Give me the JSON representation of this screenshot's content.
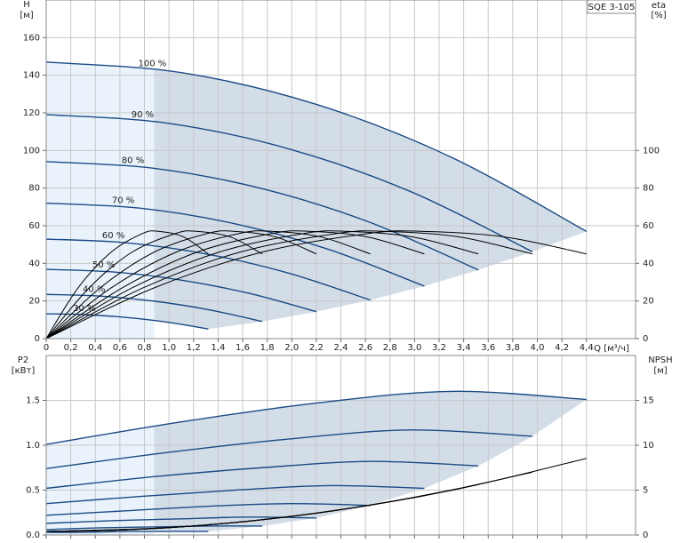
{
  "chart_data": [
    {
      "type": "line",
      "title": "SQE 3-105",
      "y_label": "H",
      "y_unit": "[м]",
      "y2_label": "eta",
      "y2_unit": "[%]",
      "x_label": "Q [м³/ч]",
      "xlim": [
        0,
        4.8
      ],
      "xticks": [
        0,
        {
          "value": 0.2,
          "label": "0,2"
        },
        {
          "value": 0.4,
          "label": "0,4"
        },
        {
          "value": 0.6,
          "label": "0,6"
        },
        {
          "value": 0.8,
          "label": "0,8"
        },
        {
          "value": 1.0,
          "label": "1,0"
        },
        {
          "value": 1.2,
          "label": "1,2"
        },
        {
          "value": 1.4,
          "label": "1,4"
        },
        {
          "value": 1.6,
          "label": "1,6"
        },
        {
          "value": 1.8,
          "label": "1,8"
        },
        {
          "value": 2.0,
          "label": "2,0"
        },
        {
          "value": 2.2,
          "label": "2,2"
        },
        {
          "value": 2.4,
          "label": "2,4"
        },
        {
          "value": 2.6,
          "label": "2,6"
        },
        {
          "value": 2.8,
          "label": "2,8"
        },
        {
          "value": 3.0,
          "label": "3,0"
        },
        {
          "value": 3.2,
          "label": "3,2"
        },
        {
          "value": 3.4,
          "label": "3,4"
        },
        {
          "value": 3.6,
          "label": "3,6"
        },
        {
          "value": 3.8,
          "label": "3,8"
        },
        {
          "value": 4.0,
          "label": "4,0"
        },
        {
          "value": 4.2,
          "label": "4,2"
        },
        {
          "value": 4.4,
          "label": "4,4"
        }
      ],
      "ylim": [
        0,
        180
      ],
      "yticks": [
        0,
        20,
        40,
        60,
        80,
        100,
        120,
        140,
        160
      ],
      "y2lim": [
        0,
        180
      ],
      "y2ticks": [
        0,
        20,
        40,
        60,
        80,
        100
      ],
      "grid": true,
      "shade_color": "#d3dde8",
      "light_shade_color": "#eaf3fb",
      "recommended_q_min": 0.88,
      "series": [
        {
          "name": "100 %",
          "color": "#1a4a85",
          "x": [
            0,
            1.1,
            2.2,
            3.3,
            4.4
          ],
          "values": [
            147,
            141.4,
            124.5,
            96.4,
            57
          ]
        },
        {
          "name": "90 %",
          "color": "#1a4a85",
          "x": [
            0,
            0.99,
            1.98,
            2.97,
            3.96
          ],
          "values": [
            119.1,
            114.5,
            100.8,
            78.1,
            46.2
          ]
        },
        {
          "name": "80 %",
          "color": "#1a4a85",
          "x": [
            0,
            0.88,
            1.76,
            2.64,
            3.52
          ],
          "values": [
            94.1,
            90.5,
            79.7,
            61.7,
            36.5
          ]
        },
        {
          "name": "70 %",
          "color": "#1a4a85",
          "x": [
            0,
            0.77,
            1.54,
            2.31,
            3.08
          ],
          "values": [
            72,
            69.3,
            61,
            47.2,
            27.9
          ]
        },
        {
          "name": "60 %",
          "color": "#1a4a85",
          "x": [
            0,
            0.66,
            1.32,
            1.98,
            2.64
          ],
          "values": [
            52.9,
            50.9,
            44.8,
            34.7,
            20.5
          ]
        },
        {
          "name": "50 %",
          "color": "#1a4a85",
          "x": [
            0,
            0.55,
            1.1,
            1.65,
            2.2
          ],
          "values": [
            36.8,
            35.4,
            31.1,
            24.1,
            14.3
          ]
        },
        {
          "name": "40 %",
          "color": "#1a4a85",
          "x": [
            0,
            0.44,
            0.88,
            1.32,
            1.76
          ],
          "values": [
            23.5,
            22.6,
            19.9,
            15.4,
            9.1
          ]
        },
        {
          "name": "30 %",
          "color": "#1a4a85",
          "x": [
            0,
            0.33,
            0.66,
            0.99,
            1.32
          ],
          "values": [
            13.2,
            12.7,
            11.2,
            8.7,
            5.1
          ]
        },
        {
          "color": "#000000",
          "axis": "y2",
          "x": [
            0,
            0.88,
            1.76,
            2.64,
            3.08,
            3.74,
            4.4
          ],
          "values": [
            0,
            27,
            46,
            56,
            57,
            54,
            45
          ]
        },
        {
          "color": "#000000",
          "axis": "y2",
          "x": [
            0,
            0.79,
            1.58,
            2.38,
            2.77,
            3.37,
            3.96
          ],
          "values": [
            0,
            27,
            46,
            56,
            57,
            54,
            45
          ]
        },
        {
          "color": "#000000",
          "axis": "y2",
          "x": [
            0,
            0.7,
            1.41,
            2.11,
            2.46,
            2.99,
            3.52
          ],
          "values": [
            0,
            27,
            46,
            56,
            57,
            54,
            45
          ]
        },
        {
          "color": "#000000",
          "axis": "y2",
          "x": [
            0,
            0.62,
            1.23,
            1.85,
            2.16,
            2.62,
            3.08
          ],
          "values": [
            0,
            27,
            46,
            56,
            57,
            54,
            45
          ]
        },
        {
          "color": "#000000",
          "axis": "y2",
          "x": [
            0,
            0.53,
            1.06,
            1.58,
            1.85,
            2.24,
            2.64
          ],
          "values": [
            0,
            27,
            46,
            56,
            57,
            54,
            45
          ]
        },
        {
          "color": "#000000",
          "axis": "y2",
          "x": [
            0,
            0.44,
            0.88,
            1.32,
            1.54,
            1.87,
            2.2
          ],
          "values": [
            0,
            27,
            46,
            56,
            57,
            54,
            45
          ]
        },
        {
          "color": "#000000",
          "axis": "y2",
          "x": [
            0,
            0.35,
            0.7,
            1.06,
            1.23,
            1.5,
            1.76
          ],
          "values": [
            0,
            27,
            46,
            56,
            57,
            54,
            45
          ]
        },
        {
          "color": "#000000",
          "axis": "y2",
          "x": [
            0,
            0.26,
            0.53,
            0.79,
            0.92,
            1.12,
            1.32
          ],
          "values": [
            0,
            27,
            46,
            56,
            57,
            54,
            45
          ]
        }
      ]
    },
    {
      "type": "line",
      "y_label": "P2",
      "y_unit": "[кВт]",
      "y2_label": "NPSH",
      "y2_unit": "[м]",
      "xlim": [
        0,
        4.8
      ],
      "xticks": [
        0,
        0.2,
        0.4,
        0.6,
        0.8,
        1.0,
        1.2,
        1.4,
        1.6,
        1.8,
        2.0,
        2.2,
        2.4,
        2.6,
        2.8,
        3.0,
        3.2,
        3.4,
        3.6,
        3.8,
        4.0,
        4.2,
        4.4
      ],
      "ylim": [
        0,
        2
      ],
      "yticks": [
        {
          "value": 0,
          "label": "0.0"
        },
        {
          "value": 0.5,
          "label": "0.5"
        },
        {
          "value": 1,
          "label": "1.0"
        },
        {
          "value": 1.5,
          "label": "1.5"
        }
      ],
      "y2lim": [
        0,
        20
      ],
      "y2ticks": [
        0,
        5,
        10,
        15
      ],
      "grid": true,
      "shade_color": "#d3dde8",
      "light_shade_color": "#eaf3fb",
      "recommended_q_min": 0.88,
      "series": [
        {
          "color": "#1a4a85",
          "x": [
            0,
            1.1,
            2.2,
            3.3,
            4.4
          ],
          "values": [
            1.01,
            1.26,
            1.47,
            1.6,
            1.51
          ]
        },
        {
          "color": "#1a4a85",
          "x": [
            0,
            0.99,
            1.98,
            2.97,
            3.96
          ],
          "values": [
            0.74,
            0.92,
            1.07,
            1.17,
            1.1
          ]
        },
        {
          "color": "#1a4a85",
          "x": [
            0,
            0.88,
            1.76,
            2.64,
            3.52
          ],
          "values": [
            0.52,
            0.65,
            0.75,
            0.82,
            0.77
          ]
        },
        {
          "color": "#1a4a85",
          "x": [
            0,
            0.77,
            1.54,
            2.31,
            3.08
          ],
          "values": [
            0.35,
            0.43,
            0.5,
            0.55,
            0.52
          ]
        },
        {
          "color": "#1a4a85",
          "x": [
            0,
            0.66,
            1.32,
            1.98,
            2.64
          ],
          "values": [
            0.22,
            0.27,
            0.32,
            0.35,
            0.33
          ]
        },
        {
          "color": "#1a4a85",
          "x": [
            0,
            0.55,
            1.1,
            1.65,
            2.2
          ],
          "values": [
            0.13,
            0.16,
            0.18,
            0.2,
            0.19
          ]
        },
        {
          "color": "#1a4a85",
          "x": [
            0,
            0.44,
            0.88,
            1.32,
            1.76
          ],
          "values": [
            0.06,
            0.08,
            0.09,
            0.1,
            0.1
          ]
        },
        {
          "color": "#1a4a85",
          "x": [
            0,
            0.33,
            0.66,
            0.99,
            1.32
          ],
          "values": [
            0.03,
            0.03,
            0.04,
            0.04,
            0.04
          ]
        },
        {
          "color": "#000000",
          "axis": "y2",
          "x": [
            0,
            1.1,
            2.2,
            3.3,
            4.4
          ],
          "values": [
            0.4,
            0.91,
            2.43,
            4.97,
            8.53
          ]
        },
        {
          "color": "#000000",
          "axis": "y2",
          "x": [
            0,
            0.99,
            1.98,
            2.97,
            3.96
          ],
          "values": [
            0.4,
            0.81,
            2.05,
            4.1,
            6.99
          ]
        },
        {
          "color": "#000000",
          "axis": "y2",
          "x": [
            0,
            0.88,
            1.76,
            2.64,
            3.52
          ],
          "values": [
            0.4,
            0.73,
            1.7,
            3.33,
            5.6
          ]
        },
        {
          "color": "#000000",
          "axis": "y2",
          "x": [
            0,
            0.77,
            1.54,
            2.31,
            3.08
          ],
          "values": [
            0.4,
            0.65,
            1.4,
            2.64,
            4.38
          ]
        },
        {
          "color": "#000000",
          "axis": "y2",
          "x": [
            0,
            0.66,
            1.32,
            1.98,
            2.64
          ],
          "values": [
            0.4,
            0.58,
            1.13,
            2.05,
            3.33
          ]
        },
        {
          "color": "#000000",
          "axis": "y2",
          "x": [
            0,
            0.55,
            1.1,
            1.65,
            2.2
          ],
          "values": [
            0.4,
            0.53,
            0.91,
            1.54,
            2.43
          ]
        },
        {
          "color": "#000000",
          "axis": "y2",
          "x": [
            0,
            0.44,
            0.88,
            1.32,
            1.76
          ],
          "values": [
            0.4,
            0.48,
            0.73,
            1.13,
            1.7
          ]
        },
        {
          "color": "#000000",
          "axis": "y2",
          "x": [
            0,
            0.33,
            0.66,
            0.99,
            1.32
          ],
          "values": [
            0.4,
            0.45,
            0.58,
            0.81,
            1.13
          ]
        }
      ]
    }
  ]
}
